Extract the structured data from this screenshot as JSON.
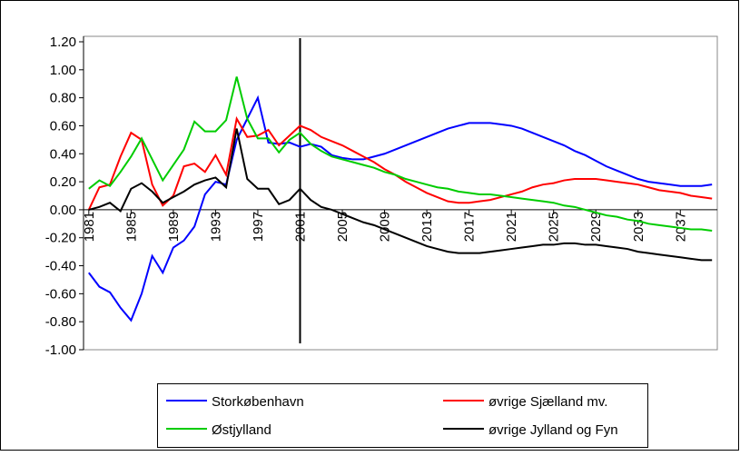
{
  "chart_data": {
    "type": "line",
    "x": [
      1981,
      1982,
      1983,
      1984,
      1985,
      1986,
      1987,
      1988,
      1989,
      1990,
      1991,
      1992,
      1993,
      1994,
      1995,
      1996,
      1997,
      1998,
      1999,
      2000,
      2001,
      2002,
      2003,
      2004,
      2005,
      2006,
      2007,
      2008,
      2009,
      2010,
      2011,
      2012,
      2013,
      2014,
      2015,
      2016,
      2017,
      2018,
      2019,
      2020,
      2021,
      2022,
      2023,
      2024,
      2025,
      2026,
      2027,
      2028,
      2029,
      2030,
      2031,
      2032,
      2033,
      2034,
      2035,
      2036,
      2037,
      2038,
      2039,
      2040
    ],
    "xlim": [
      1980.5,
      2040.5
    ],
    "xticks": [
      1981,
      1985,
      1989,
      1993,
      1997,
      2001,
      2005,
      2009,
      2013,
      2017,
      2021,
      2025,
      2029,
      2033,
      2037
    ],
    "ylim": [
      -1.0,
      1.2
    ],
    "yticks": [
      {
        "value": -1.0,
        "label": "-1.00"
      },
      {
        "value": -0.8,
        "label": "-0.80"
      },
      {
        "value": -0.6,
        "label": "-0.60"
      },
      {
        "value": -0.4,
        "label": "-0.40"
      },
      {
        "value": -0.2,
        "label": "-0.20"
      },
      {
        "value": 0,
        "label": "0.00"
      },
      {
        "value": 0.2,
        "label": "0.20"
      },
      {
        "value": 0.4,
        "label": "0.40"
      },
      {
        "value": 0.6,
        "label": "0.60"
      },
      {
        "value": 0.8,
        "label": "0.80"
      },
      {
        "value": 1.0,
        "label": "1.00"
      },
      {
        "value": 1.2,
        "label": "1.20"
      }
    ],
    "series": [
      {
        "name": "Storkøbenhavn",
        "color": "#0000ff",
        "values": [
          -0.45,
          -0.55,
          -0.59,
          -0.7,
          -0.79,
          -0.6,
          -0.33,
          -0.45,
          -0.27,
          -0.22,
          -0.12,
          0.11,
          0.2,
          0.18,
          0.5,
          0.65,
          0.8,
          0.48,
          0.47,
          0.48,
          0.45,
          0.47,
          0.45,
          0.39,
          0.37,
          0.36,
          0.36,
          0.38,
          0.4,
          0.43,
          0.46,
          0.49,
          0.52,
          0.55,
          0.58,
          0.6,
          0.62,
          0.62,
          0.62,
          0.61,
          0.6,
          0.58,
          0.55,
          0.52,
          0.49,
          0.46,
          0.42,
          0.39,
          0.35,
          0.31,
          0.28,
          0.25,
          0.22,
          0.2,
          0.19,
          0.18,
          0.17,
          0.17,
          0.17,
          0.18
        ]
      },
      {
        "name": "øvrige Sjælland mv.",
        "color": "#ff0000",
        "values": [
          0.0,
          0.16,
          0.18,
          0.38,
          0.55,
          0.5,
          0.18,
          0.03,
          0.1,
          0.31,
          0.33,
          0.27,
          0.39,
          0.25,
          0.65,
          0.52,
          0.53,
          0.57,
          0.46,
          0.53,
          0.6,
          0.57,
          0.52,
          0.49,
          0.46,
          0.42,
          0.38,
          0.34,
          0.29,
          0.25,
          0.2,
          0.16,
          0.12,
          0.09,
          0.06,
          0.05,
          0.05,
          0.06,
          0.07,
          0.09,
          0.11,
          0.13,
          0.16,
          0.18,
          0.19,
          0.21,
          0.22,
          0.22,
          0.22,
          0.21,
          0.2,
          0.19,
          0.18,
          0.16,
          0.14,
          0.13,
          0.12,
          0.1,
          0.09,
          0.08
        ]
      },
      {
        "name": "Østjylland",
        "color": "#00cc00",
        "values": [
          0.15,
          0.21,
          0.17,
          0.27,
          0.38,
          0.51,
          0.36,
          0.21,
          0.32,
          0.43,
          0.63,
          0.56,
          0.56,
          0.64,
          0.95,
          0.65,
          0.51,
          0.51,
          0.41,
          0.5,
          0.55,
          0.47,
          0.42,
          0.38,
          0.36,
          0.34,
          0.32,
          0.3,
          0.27,
          0.25,
          0.22,
          0.2,
          0.18,
          0.16,
          0.15,
          0.13,
          0.12,
          0.11,
          0.11,
          0.1,
          0.09,
          0.08,
          0.07,
          0.06,
          0.05,
          0.03,
          0.02,
          0.0,
          -0.02,
          -0.04,
          -0.05,
          -0.07,
          -0.08,
          -0.1,
          -0.11,
          -0.12,
          -0.13,
          -0.14,
          -0.14,
          -0.15
        ]
      },
      {
        "name": "øvrige Jylland og Fyn",
        "color": "#000000",
        "values": [
          0.0,
          0.02,
          0.05,
          -0.01,
          0.15,
          0.19,
          0.13,
          0.05,
          0.09,
          0.13,
          0.18,
          0.21,
          0.23,
          0.16,
          0.58,
          0.22,
          0.15,
          0.15,
          0.04,
          0.07,
          0.15,
          0.07,
          0.02,
          0.0,
          -0.03,
          -0.06,
          -0.09,
          -0.11,
          -0.14,
          -0.17,
          -0.2,
          -0.23,
          -0.26,
          -0.28,
          -0.3,
          -0.31,
          -0.31,
          -0.31,
          -0.3,
          -0.29,
          -0.28,
          -0.27,
          -0.26,
          -0.25,
          -0.25,
          -0.24,
          -0.24,
          -0.25,
          -0.25,
          -0.26,
          -0.27,
          -0.28,
          -0.3,
          -0.31,
          -0.32,
          -0.33,
          -0.34,
          -0.35,
          -0.36,
          -0.36
        ]
      }
    ]
  }
}
